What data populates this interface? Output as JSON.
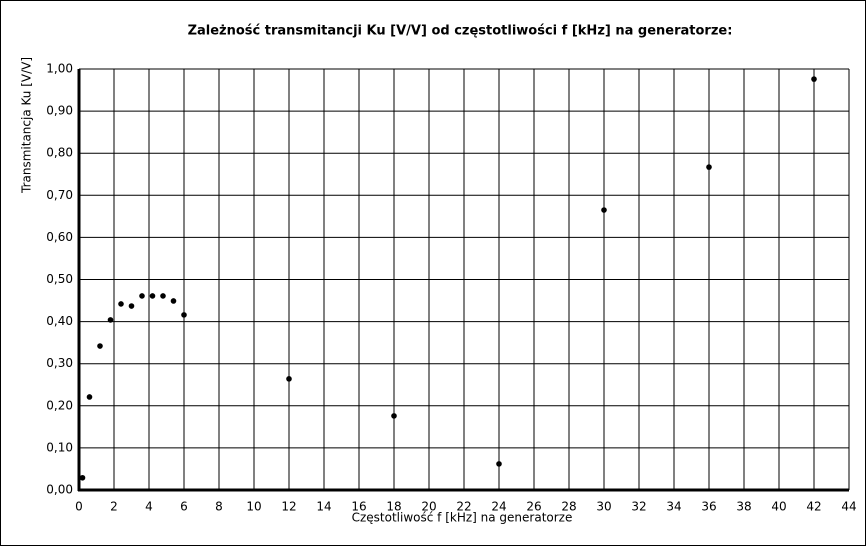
{
  "chart_data": {
    "type": "scatter",
    "title": "Zależność transmitancji Ku [V/V] od częstotliwości f [kHz] na generatorze:",
    "x_label": "Częstotliwość  f [kHz] na generatorze",
    "y_label": "Transmitancja Ku [V/V]",
    "grid": true,
    "series": [
      {
        "name": "Ku",
        "color": "#000000",
        "x": [
          0.2,
          0.6,
          1.2,
          1.8,
          2.4,
          3.0,
          3.6,
          4.2,
          4.8,
          5.4,
          6.0,
          12,
          18,
          24,
          30,
          36,
          42
        ],
        "values": [
          0.029,
          0.221,
          0.342,
          0.404,
          0.442,
          0.437,
          0.461,
          0.461,
          0.461,
          0.449,
          0.416,
          0.264,
          0.176,
          0.062,
          0.665,
          0.767,
          0.976
        ]
      }
    ],
    "xlim": [
      0,
      44
    ],
    "xticks": [
      0,
      2,
      4,
      6,
      8,
      10,
      12,
      14,
      16,
      18,
      20,
      22,
      24,
      26,
      28,
      30,
      32,
      34,
      36,
      38,
      40,
      42,
      44
    ],
    "ylim": [
      0,
      1
    ],
    "yticks": [
      {
        "value": 0,
        "label": "0,00"
      },
      {
        "value": 0.1,
        "label": "0,10"
      },
      {
        "value": 0.2,
        "label": "0,20"
      },
      {
        "value": 0.3,
        "label": "0,30"
      },
      {
        "value": 0.4,
        "label": "0,40"
      },
      {
        "value": 0.5,
        "label": "0,50"
      },
      {
        "value": 0.6,
        "label": "0,60"
      },
      {
        "value": 0.7,
        "label": "0,70"
      },
      {
        "value": 0.8,
        "label": "0,80"
      },
      {
        "value": 0.9,
        "label": "0,90"
      },
      {
        "value": 1,
        "label": "1,00"
      }
    ]
  }
}
